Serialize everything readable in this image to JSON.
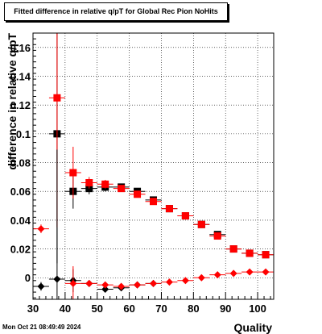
{
  "title": "Fitted difference in relative q/pT for Global Rec Pion NoHits",
  "datestamp": "Mon Oct 21 08:49:49 2024",
  "chart_data": {
    "type": "scatter",
    "title": "Fitted difference in relative q/pT for Global Rec Pion NoHits",
    "xlabel": "Quality",
    "ylabel": "difference in relative q/pT",
    "xlim": [
      30,
      105
    ],
    "ylim": [
      -0.015,
      0.17
    ],
    "grid": true,
    "x_ticks": [
      30,
      40,
      50,
      60,
      70,
      80,
      90,
      100
    ],
    "x_tick_labels": [
      "30",
      "40",
      "50",
      "60",
      "70",
      "80",
      "90",
      "100"
    ],
    "y_ticks": [
      0,
      0.02,
      0.04,
      0.06,
      0.08,
      0.1,
      0.12,
      0.14,
      0.16
    ],
    "y_tick_labels": [
      "0",
      "0.02",
      "0.04",
      "0.06",
      "0.08",
      "0.1",
      "0.12",
      "0.14",
      "0.16"
    ],
    "series": [
      {
        "marker": "square",
        "color": "#000000",
        "xerr": 2.5,
        "points": [
          {
            "x": 37.5,
            "y": 0.1,
            "err": 0.09
          },
          {
            "x": 42.5,
            "y": 0.06,
            "err": 0.012
          },
          {
            "x": 47.5,
            "y": 0.062,
            "err": 0.004
          },
          {
            "x": 52.5,
            "y": 0.063,
            "err": 0.003
          },
          {
            "x": 57.5,
            "y": 0.063,
            "err": 0.002
          },
          {
            "x": 62.5,
            "y": 0.06,
            "err": 0.002
          },
          {
            "x": 67.5,
            "y": 0.054,
            "err": 0.002
          },
          {
            "x": 72.5,
            "y": 0.048,
            "err": 0.002
          },
          {
            "x": 77.5,
            "y": 0.043,
            "err": 0.002
          },
          {
            "x": 82.5,
            "y": 0.037,
            "err": 0.002
          },
          {
            "x": 87.5,
            "y": 0.03,
            "err": 0.002
          },
          {
            "x": 92.5,
            "y": 0.02,
            "err": 0.002
          },
          {
            "x": 97.5,
            "y": 0.017,
            "err": 0.001
          },
          {
            "x": 102.5,
            "y": 0.016,
            "err": 0.001
          }
        ]
      },
      {
        "marker": "square",
        "color": "#ff0000",
        "xerr": 2.5,
        "points": [
          {
            "x": 37.5,
            "y": 0.125,
            "err": 0.09
          },
          {
            "x": 42.5,
            "y": 0.073,
            "err": 0.018
          },
          {
            "x": 47.5,
            "y": 0.066,
            "err": 0.004
          },
          {
            "x": 52.5,
            "y": 0.065,
            "err": 0.003
          },
          {
            "x": 57.5,
            "y": 0.062,
            "err": 0.002
          },
          {
            "x": 62.5,
            "y": 0.058,
            "err": 0.002
          },
          {
            "x": 67.5,
            "y": 0.053,
            "err": 0.002
          },
          {
            "x": 72.5,
            "y": 0.048,
            "err": 0.002
          },
          {
            "x": 77.5,
            "y": 0.043,
            "err": 0.002
          },
          {
            "x": 82.5,
            "y": 0.037,
            "err": 0.002
          },
          {
            "x": 87.5,
            "y": 0.029,
            "err": 0.002
          },
          {
            "x": 92.5,
            "y": 0.02,
            "err": 0.002
          },
          {
            "x": 97.5,
            "y": 0.017,
            "err": 0.001
          },
          {
            "x": 102.5,
            "y": 0.016,
            "err": 0.001
          }
        ]
      },
      {
        "marker": "diamond",
        "color": "#000000",
        "xerr": 2.5,
        "points": [
          {
            "x": 32.5,
            "y": -0.006,
            "err": 0.003
          },
          {
            "x": 37.5,
            "y": -0.001,
            "err": 0.09
          },
          {
            "x": 42.5,
            "y": -0.002,
            "err": 0.008
          },
          {
            "x": 47.5,
            "y": -0.004,
            "err": 0.002
          },
          {
            "x": 52.5,
            "y": -0.008,
            "err": 0.002
          },
          {
            "x": 57.5,
            "y": -0.007,
            "err": 0.001
          },
          {
            "x": 62.5,
            "y": -0.005,
            "err": 0.001
          },
          {
            "x": 67.5,
            "y": -0.004,
            "err": 0.001
          }
        ]
      },
      {
        "marker": "diamond",
        "color": "#ff0000",
        "xerr": 2.5,
        "points": [
          {
            "x": 32.5,
            "y": 0.034,
            "err": 0.003
          },
          {
            "x": 42.5,
            "y": -0.004,
            "err": 0.012
          },
          {
            "x": 47.5,
            "y": -0.004,
            "err": 0.002
          },
          {
            "x": 52.5,
            "y": -0.005,
            "err": 0.002
          },
          {
            "x": 57.5,
            "y": -0.006,
            "err": 0.001
          },
          {
            "x": 62.5,
            "y": -0.005,
            "err": 0.001
          },
          {
            "x": 67.5,
            "y": -0.004,
            "err": 0.001
          },
          {
            "x": 72.5,
            "y": -0.003,
            "err": 0.001
          },
          {
            "x": 77.5,
            "y": -0.002,
            "err": 0.001
          },
          {
            "x": 82.5,
            "y": 0.0,
            "err": 0.001
          },
          {
            "x": 87.5,
            "y": 0.002,
            "err": 0.001
          },
          {
            "x": 92.5,
            "y": 0.003,
            "err": 0.001
          },
          {
            "x": 97.5,
            "y": 0.004,
            "err": 0.001
          },
          {
            "x": 102.5,
            "y": 0.004,
            "err": 0.001
          }
        ]
      }
    ]
  }
}
